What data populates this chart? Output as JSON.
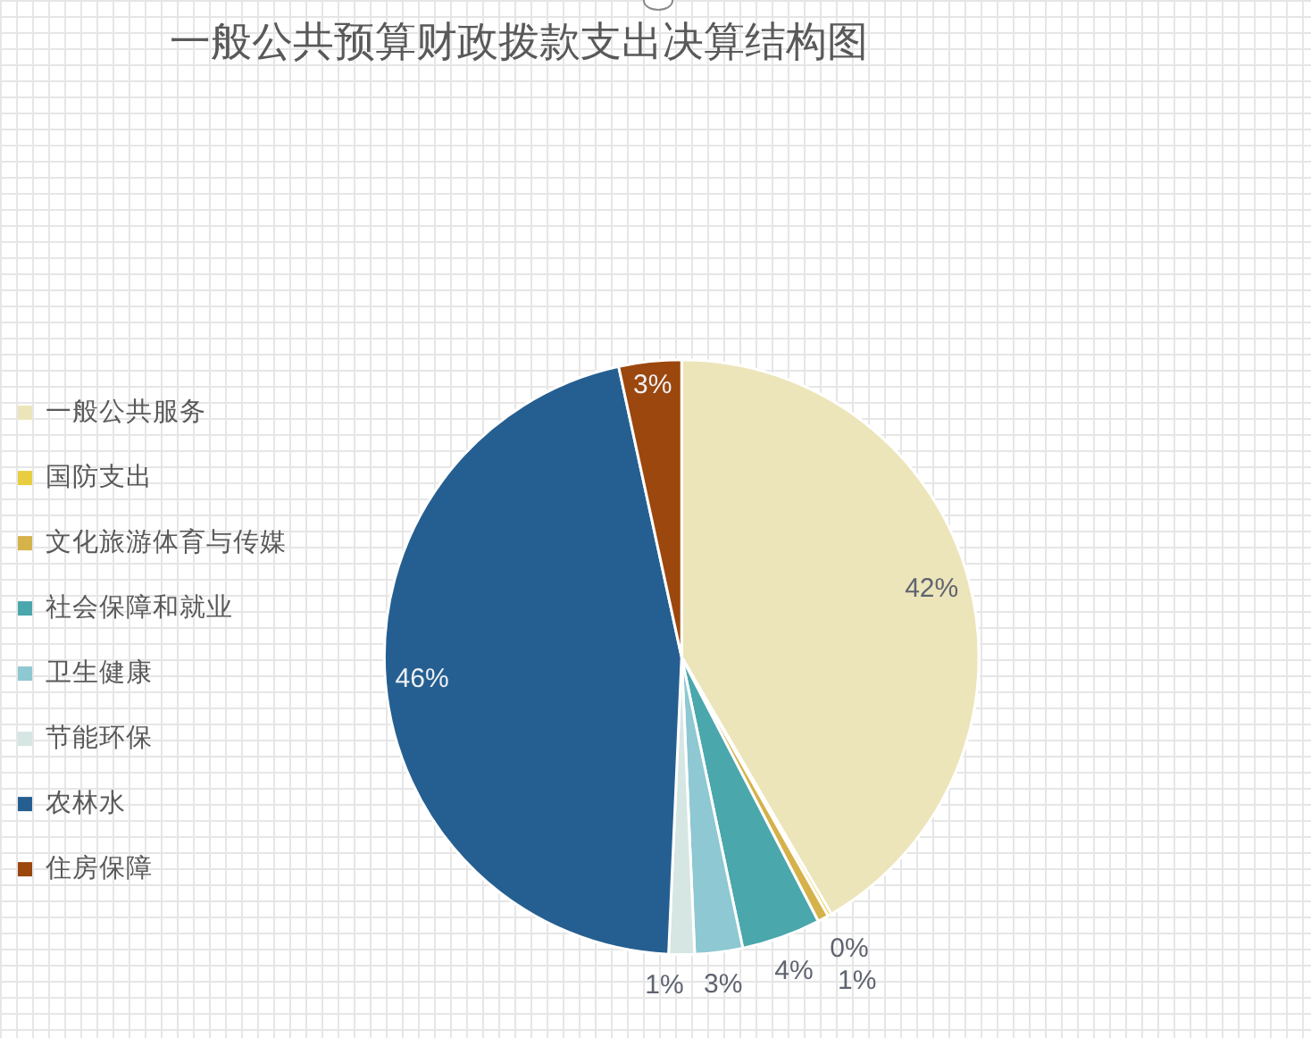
{
  "chart_data": {
    "type": "pie",
    "title": "一般公共预算财政拨款支出决算结构图",
    "categories": [
      "一般公共服务",
      "国防支出",
      "文化旅游体育与传媒",
      "社会保障和就业",
      "卫生健康",
      "节能环保",
      "农林水",
      "住房保障"
    ],
    "values": [
      41.6,
      0.2,
      0.6,
      4.3,
      2.6,
      1.4,
      45.9,
      3.4
    ],
    "colors": [
      "#ede5ba",
      "#e8cd3e",
      "#d5b24a",
      "#4aa7ac",
      "#8ec8d2",
      "#d5e6e3",
      "#255f91",
      "#9c470d"
    ],
    "value_labels": [
      "42%",
      "0%",
      "1%",
      "4%",
      "3%",
      "1%",
      "46%",
      "3%"
    ],
    "legend": "left"
  }
}
